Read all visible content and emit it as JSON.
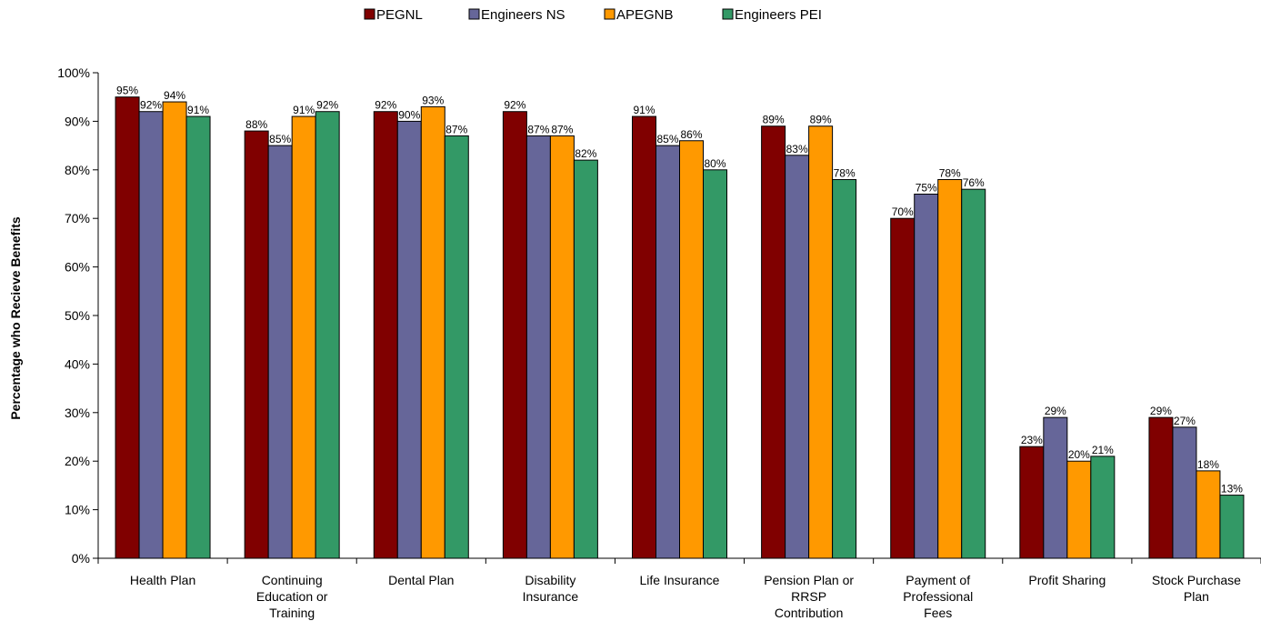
{
  "chart_data": {
    "type": "bar",
    "title": "",
    "xlabel": "",
    "ylabel": "Percentage who Recieve Benefits",
    "ylim": [
      0,
      100
    ],
    "y_ticks": [
      "0%",
      "10%",
      "20%",
      "30%",
      "40%",
      "50%",
      "60%",
      "70%",
      "80%",
      "90%",
      "100%"
    ],
    "grid": false,
    "legend_position": "top",
    "categories": [
      [
        "Health Plan"
      ],
      [
        "Continuing",
        "Education or",
        "Training"
      ],
      [
        "Dental Plan"
      ],
      [
        "Disability",
        "Insurance"
      ],
      [
        "Life Insurance"
      ],
      [
        "Pension Plan or",
        "RRSP",
        "Contribution"
      ],
      [
        "Payment of",
        "Professional",
        "Fees"
      ],
      [
        "Profit Sharing"
      ],
      [
        "Stock Purchase",
        "Plan"
      ]
    ],
    "series": [
      {
        "name": "PEGNL",
        "color": "#800000",
        "values": [
          95,
          88,
          92,
          92,
          91,
          89,
          70,
          23,
          29
        ]
      },
      {
        "name": "Engineers NS",
        "color": "#666699",
        "values": [
          92,
          85,
          90,
          87,
          85,
          83,
          75,
          29,
          27
        ]
      },
      {
        "name": "APEGNB",
        "color": "#FF9900",
        "values": [
          94,
          91,
          93,
          87,
          86,
          89,
          78,
          20,
          18
        ]
      },
      {
        "name": "Engineers PEI",
        "color": "#339966",
        "values": [
          91,
          92,
          87,
          82,
          80,
          78,
          76,
          21,
          13
        ]
      }
    ],
    "value_suffix": "%"
  }
}
